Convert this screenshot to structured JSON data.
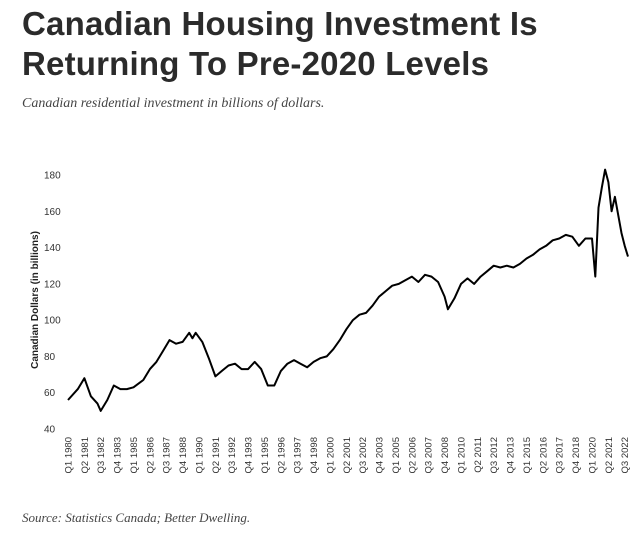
{
  "header": {
    "title": "Canadian Housing Investment Is Returning To Pre-2020 Levels",
    "subtitle": "Canadian residential investment in billions of dollars.",
    "source": "Source: Statistics Canada; Better Dwelling."
  },
  "chart_data": {
    "type": "line",
    "title": "",
    "xlabel": "",
    "ylabel": "Canadian Dollars (in billions)",
    "ylim": [
      40,
      180
    ],
    "yticks": [
      40,
      60,
      80,
      100,
      120,
      140,
      160,
      180
    ],
    "grid": false,
    "line_color": "#000000",
    "x_tick_labels": [
      "Q1 1980",
      "Q2 1981",
      "Q3 1982",
      "Q4 1983",
      "Q1 1985",
      "Q2 1986",
      "Q3 1987",
      "Q4 1988",
      "Q1 1990",
      "Q2 1991",
      "Q3 1992",
      "Q4 1993",
      "Q1 1995",
      "Q2 1996",
      "Q3 1997",
      "Q4 1998",
      "Q1 2000",
      "Q2 2001",
      "Q3 2002",
      "Q4 2003",
      "Q1 2005",
      "Q2 2006",
      "Q3 2007",
      "Q4 2008",
      "Q1 2010",
      "Q2 2011",
      "Q3 2012",
      "Q4 2013",
      "Q1 2015",
      "Q2 2016",
      "Q3 2017",
      "Q4 2018",
      "Q1 2020",
      "Q2 2021",
      "Q3 2022"
    ],
    "series": [
      {
        "points": [
          [
            "1980-Q1",
            56
          ],
          [
            "1980-Q4",
            62
          ],
          [
            "1981-Q2",
            68
          ],
          [
            "1981-Q4",
            58
          ],
          [
            "1982-Q2",
            54
          ],
          [
            "1982-Q3",
            50
          ],
          [
            "1983-Q1",
            56
          ],
          [
            "1983-Q3",
            64
          ],
          [
            "1984-Q1",
            62
          ],
          [
            "1984-Q3",
            62
          ],
          [
            "1985-Q1",
            63
          ],
          [
            "1985-Q4",
            67
          ],
          [
            "1986-Q2",
            73
          ],
          [
            "1986-Q4",
            77
          ],
          [
            "1987-Q2",
            83
          ],
          [
            "1987-Q4",
            89
          ],
          [
            "1988-Q2",
            87
          ],
          [
            "1988-Q4",
            88
          ],
          [
            "1989-Q2",
            93
          ],
          [
            "1989-Q3",
            90
          ],
          [
            "1989-Q4",
            93
          ],
          [
            "1990-Q2",
            88
          ],
          [
            "1990-Q4",
            79
          ],
          [
            "1991-Q2",
            69
          ],
          [
            "1991-Q4",
            72
          ],
          [
            "1992-Q2",
            75
          ],
          [
            "1992-Q4",
            76
          ],
          [
            "1993-Q2",
            73
          ],
          [
            "1993-Q4",
            73
          ],
          [
            "1994-Q2",
            77
          ],
          [
            "1994-Q4",
            73
          ],
          [
            "1995-Q2",
            64
          ],
          [
            "1995-Q4",
            64
          ],
          [
            "1996-Q2",
            72
          ],
          [
            "1996-Q4",
            76
          ],
          [
            "1997-Q2",
            78
          ],
          [
            "1997-Q4",
            76
          ],
          [
            "1998-Q2",
            74
          ],
          [
            "1998-Q4",
            77
          ],
          [
            "1999-Q2",
            79
          ],
          [
            "1999-Q4",
            80
          ],
          [
            "2000-Q2",
            84
          ],
          [
            "2000-Q4",
            89
          ],
          [
            "2001-Q2",
            95
          ],
          [
            "2001-Q4",
            100
          ],
          [
            "2002-Q2",
            103
          ],
          [
            "2002-Q4",
            104
          ],
          [
            "2003-Q2",
            108
          ],
          [
            "2003-Q4",
            113
          ],
          [
            "2004-Q2",
            116
          ],
          [
            "2004-Q4",
            119
          ],
          [
            "2005-Q2",
            120
          ],
          [
            "2005-Q4",
            122
          ],
          [
            "2006-Q2",
            124
          ],
          [
            "2006-Q4",
            121
          ],
          [
            "2007-Q2",
            125
          ],
          [
            "2007-Q4",
            124
          ],
          [
            "2008-Q2",
            121
          ],
          [
            "2008-Q4",
            113
          ],
          [
            "2009-Q1",
            106
          ],
          [
            "2009-Q3",
            112
          ],
          [
            "2010-Q1",
            120
          ],
          [
            "2010-Q3",
            123
          ],
          [
            "2011-Q1",
            120
          ],
          [
            "2011-Q3",
            124
          ],
          [
            "2012-Q1",
            127
          ],
          [
            "2012-Q3",
            130
          ],
          [
            "2013-Q1",
            129
          ],
          [
            "2013-Q3",
            130
          ],
          [
            "2014-Q1",
            129
          ],
          [
            "2014-Q3",
            131
          ],
          [
            "2015-Q1",
            134
          ],
          [
            "2015-Q3",
            136
          ],
          [
            "2016-Q1",
            139
          ],
          [
            "2016-Q3",
            141
          ],
          [
            "2017-Q1",
            144
          ],
          [
            "2017-Q3",
            145
          ],
          [
            "2018-Q1",
            147
          ],
          [
            "2018-Q3",
            146
          ],
          [
            "2019-Q1",
            141
          ],
          [
            "2019-Q3",
            145
          ],
          [
            "2020-Q1",
            145
          ],
          [
            "2020-Q2",
            124
          ],
          [
            "2020-Q3",
            162
          ],
          [
            "2020-Q4",
            173
          ],
          [
            "2021-Q1",
            183
          ],
          [
            "2021-Q2",
            176
          ],
          [
            "2021-Q3",
            160
          ],
          [
            "2021-Q4",
            168
          ],
          [
            "2022-Q1",
            158
          ],
          [
            "2022-Q2",
            148
          ],
          [
            "2022-Q3",
            141
          ],
          [
            "2022-Q4",
            135
          ]
        ]
      }
    ]
  }
}
